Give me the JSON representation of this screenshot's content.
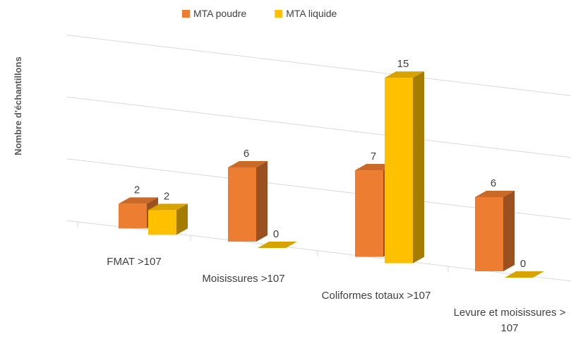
{
  "chart_data": {
    "type": "bar3d",
    "y_label": "Nombre d'échantillons",
    "categories": [
      "FMAT >107",
      "Moisissures >107",
      "Coliformes totaux >107",
      "Levure et moisissures > 107"
    ],
    "series": [
      {
        "name": "MTA poudre",
        "color": "#ED7D31",
        "values": [
          2,
          6,
          7,
          6
        ]
      },
      {
        "name": "MTA liquide",
        "color": "#FFC000",
        "values": [
          2,
          0,
          15,
          0
        ]
      }
    ],
    "ylim": [
      0,
      16
    ],
    "yticks": [
      0,
      5,
      10,
      15
    ],
    "grid": true,
    "legend": "top"
  }
}
